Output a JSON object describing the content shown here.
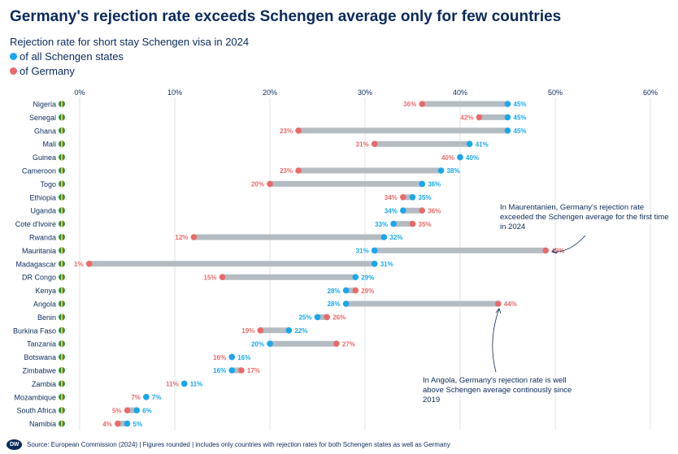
{
  "title": "Germany's rejection rate exceeds Schengen average only for few countries",
  "subtitle": "Rejection rate for short stay Schengen visa in 2024",
  "legend": [
    {
      "label": "of all Schengen states",
      "color": "#1aa7ec"
    },
    {
      "label": "of Germany",
      "color": "#e96a6a"
    }
  ],
  "colors": {
    "schengen": "#1aa7ec",
    "germany": "#e96a6a",
    "bar": "#b4bcc2",
    "text": "#0b2a5b",
    "grid": "#e0e3e6"
  },
  "chart_data": {
    "type": "dumbbell",
    "xlim": [
      0,
      60
    ],
    "x_ticks": [
      "0%",
      "10%",
      "20%",
      "30%",
      "40%",
      "50%",
      "60%"
    ],
    "categories": [
      "Nigeria",
      "Senegal",
      "Ghana",
      "Mali",
      "Guinea",
      "Cameroon",
      "Togo",
      "Ethiopia",
      "Uganda",
      "Cote d'Ivoire",
      "Rwanda",
      "Mauritania",
      "Madagascar",
      "DR Congo",
      "Kenya",
      "Angola",
      "Benin",
      "Burkina Faso",
      "Tanzania",
      "Botswana",
      "Zimbabwe",
      "Zambia",
      "Mozambique",
      "South Africa",
      "Namibia"
    ],
    "series": [
      {
        "name": "of all Schengen states",
        "values": [
          45,
          45,
          45,
          41,
          40,
          38,
          36,
          35,
          34,
          33,
          32,
          31,
          31,
          29,
          28,
          28,
          25,
          22,
          20,
          16,
          16,
          11,
          7,
          6,
          5
        ],
        "labels": [
          "45%",
          "45%",
          "45%",
          "41%",
          "40%",
          "38%",
          "36%",
          "35%",
          "34%",
          "33%",
          "32%",
          "31%",
          "31%",
          "29%",
          "28%",
          "28%",
          "25%",
          "22%",
          "20%",
          "16%",
          "16%",
          "11%",
          "7%",
          "6%",
          "5%"
        ]
      },
      {
        "name": "of Germany",
        "values": [
          36,
          42,
          23,
          31,
          40,
          23,
          20,
          34,
          36,
          35,
          12,
          49,
          1,
          15,
          29,
          44,
          26,
          19,
          27,
          16,
          17,
          11,
          7,
          5,
          4
        ],
        "labels": [
          "36%",
          "42%",
          "23%",
          "31%",
          "40%",
          "23%",
          "20%",
          "34%",
          "36%",
          "35%",
          "12%",
          "49%",
          "1%",
          "15%",
          "29%",
          "44%",
          "26%",
          "19%",
          "27%",
          "16%",
          "17%",
          "11%",
          "7%",
          "5%",
          "4%"
        ]
      }
    ],
    "annotations": [
      {
        "text": "In Maurentanien, Germany's rejection rate exceeded the Schengen average for the first time in 2024",
        "lines": [
          "In Maurentanien, Germany's rejection rate",
          "exceeded the Schengen average for the first time",
          "in 2024"
        ],
        "target": "Mauritania"
      },
      {
        "text": "In Angola, Germany's rejection rate is well above Schengen average continously since 2019",
        "lines": [
          "In Angola, Germany's rejection rate is well",
          "above Schengen average continously since",
          "2019"
        ],
        "target": "Angola"
      }
    ]
  },
  "footer": {
    "logo": "DW",
    "source": "Source: European Commission (2024) | Figures rounded | includes only countries with rejection rates for both Schengen states as well as Germany"
  }
}
